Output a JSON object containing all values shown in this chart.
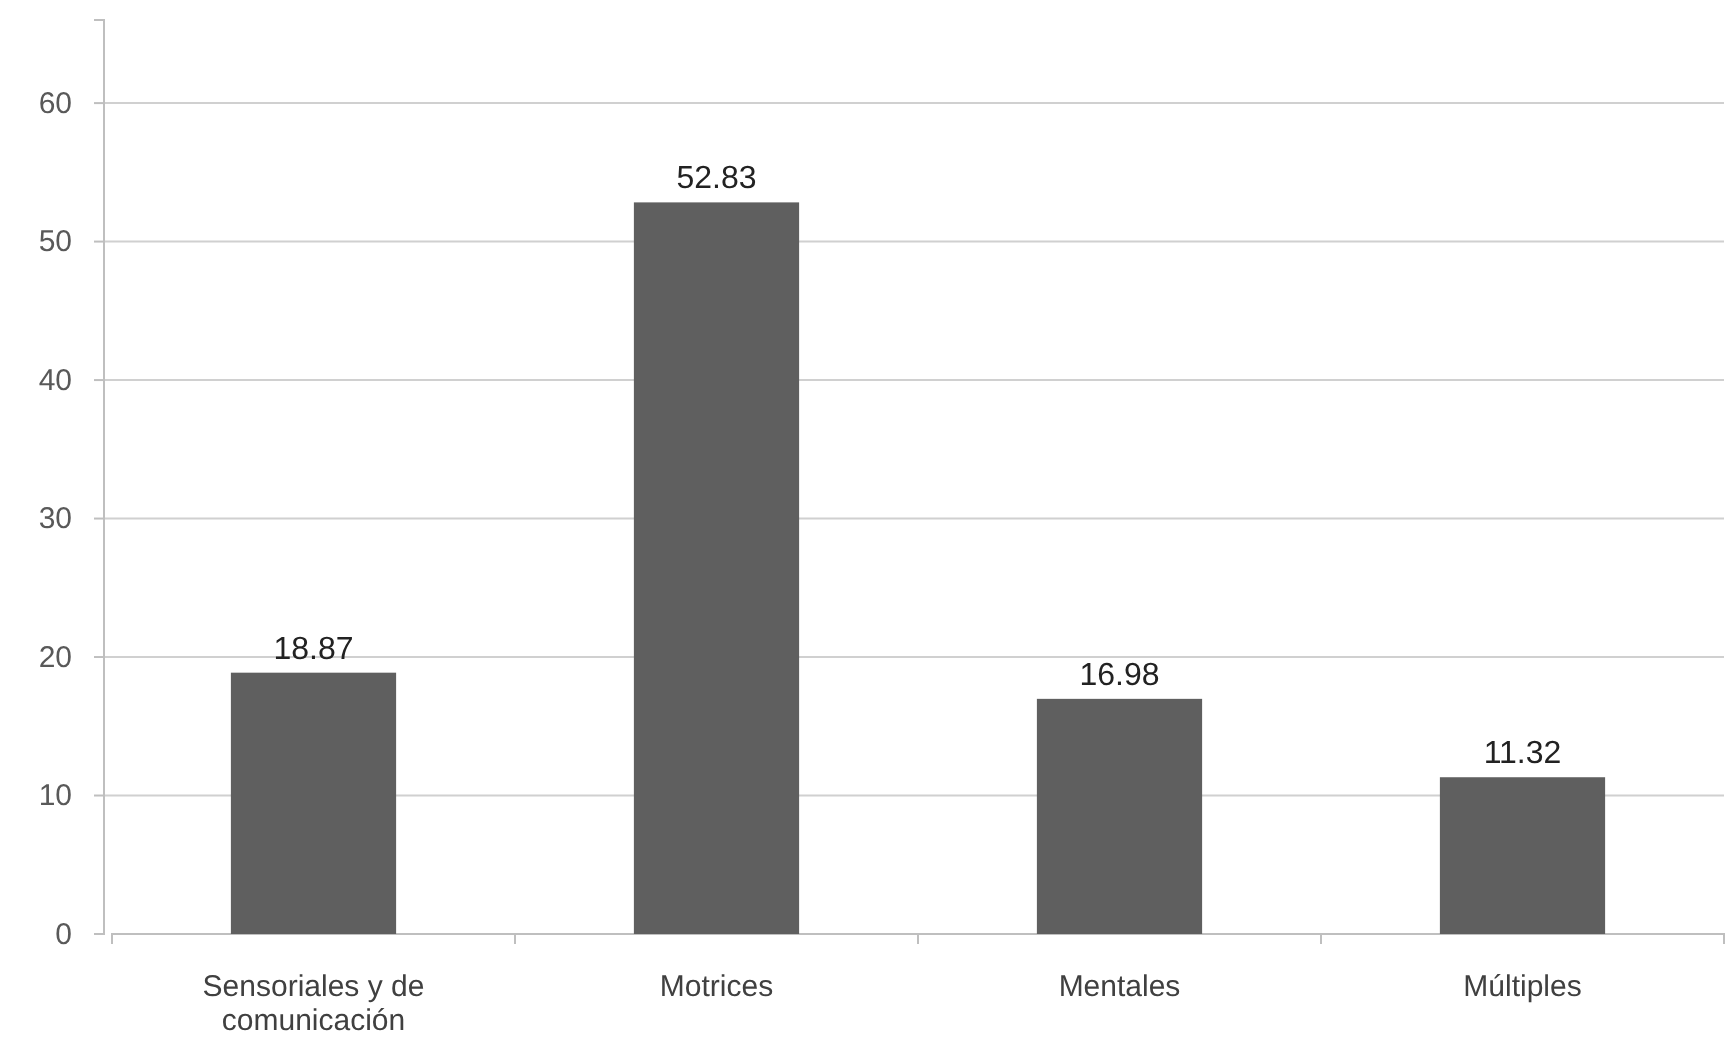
{
  "chart_data": {
    "type": "bar",
    "categories": [
      "Sensoriales y de comunicación",
      "Motrices",
      "Mentales",
      "Múltiples"
    ],
    "values": [
      18.87,
      52.83,
      16.98,
      11.32
    ],
    "color": "#5f5f5f",
    "ylim": [
      0,
      66
    ],
    "yticks": [
      0,
      10,
      20,
      30,
      40,
      50,
      60
    ],
    "grid": "y",
    "data_labels": true
  }
}
